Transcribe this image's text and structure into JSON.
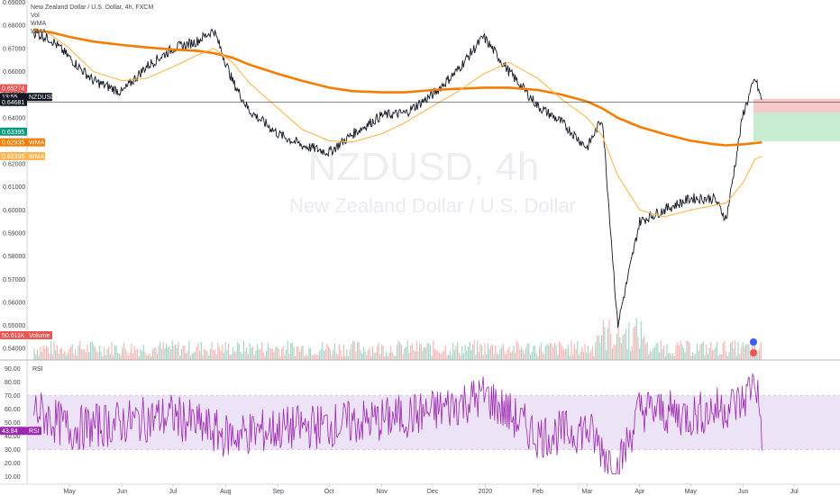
{
  "legend": {
    "title": "New Zealand Dollar / U.S. Dollar, 4h, FXCM",
    "items": [
      "Vol",
      "WMA",
      "WMA"
    ]
  },
  "watermark": {
    "symbol": "NZDUSD, 4h",
    "name": "New Zealand Dollar / U.S. Dollar"
  },
  "price_badges": [
    {
      "label": "0.65274",
      "color": "#ef5350"
    },
    {
      "label": "13:55",
      "color": "#131722"
    },
    {
      "label": "NZDUSD",
      "color": "#131722"
    },
    {
      "label": "0.64681",
      "color": "#131722"
    },
    {
      "label": "0.63395",
      "color": "#089981"
    },
    {
      "label": "0.62935",
      "color": "#f57c00"
    },
    {
      "label": "WMA",
      "color": "#f57c00"
    },
    {
      "label": "0.62335",
      "color": "#ffb74d"
    },
    {
      "label": "WMA",
      "color": "#ffb74d"
    },
    {
      "label": "50.611K",
      "color": "#ef5350"
    },
    {
      "label": "Volume",
      "color": "#ef5350"
    }
  ],
  "rsi_badges": [
    {
      "label": "43.84",
      "color": "#9c27b0"
    },
    {
      "label": "RSI",
      "color": "#9c27b0"
    }
  ],
  "rsi_title": "RSI",
  "colors": {
    "candle": "#131722",
    "wma_long": "#f57c00",
    "wma_short": "#ffb74d",
    "rsi": "#9c27b0",
    "rsi_band": "#ede3f7",
    "stop_zone": "#f8c9c9",
    "target_zone": "#c8ecd0",
    "vol_up": "#a5d6c8",
    "vol_down": "#f5b7b5"
  },
  "chart_data": [
    {
      "type": "line",
      "title": "New Zealand Dollar / U.S. Dollar, 4h, FXCM",
      "x": [
        "2019-04-10",
        "2019-04-20",
        "2019-05-01",
        "2019-05-15",
        "2019-06-01",
        "2019-06-15",
        "2019-07-01",
        "2019-07-15",
        "2019-07-25",
        "2019-08-05",
        "2019-08-15",
        "2019-09-01",
        "2019-09-15",
        "2019-10-01",
        "2019-10-15",
        "2019-11-01",
        "2019-11-15",
        "2019-12-01",
        "2019-12-15",
        "2019-12-31",
        "2020-01-15",
        "2020-02-01",
        "2020-02-15",
        "2020-03-01",
        "2020-03-10",
        "2020-03-19",
        "2020-04-01",
        "2020-04-15",
        "2020-05-01",
        "2020-05-15",
        "2020-05-22",
        "2020-06-01",
        "2020-06-08",
        "2020-06-12"
      ],
      "series": [
        {
          "values": [
            0.677,
            0.674,
            0.666,
            0.656,
            0.651,
            0.662,
            0.67,
            0.673,
            0.678,
            0.656,
            0.643,
            0.633,
            0.628,
            0.625,
            0.633,
            0.641,
            0.642,
            0.65,
            0.66,
            0.675,
            0.66,
            0.645,
            0.638,
            0.627,
            0.64,
            0.55,
            0.595,
            0.6,
            0.605,
            0.605,
            0.596,
            0.642,
            0.657,
            0.647
          ]
        },
        {
          "values": [
            0.678,
            0.677,
            0.675,
            0.673,
            0.6715,
            0.6705,
            0.6695,
            0.669,
            0.668,
            0.666,
            0.663,
            0.659,
            0.656,
            0.653,
            0.6515,
            0.651,
            0.651,
            0.652,
            0.6525,
            0.653,
            0.653,
            0.652,
            0.65,
            0.647,
            0.644,
            0.64,
            0.636,
            0.633,
            0.63,
            0.6285,
            0.628,
            0.6285,
            0.629,
            0.6293
          ]
        },
        {
          "values": [
            0.679,
            0.676,
            0.67,
            0.66,
            0.656,
            0.657,
            0.662,
            0.667,
            0.67,
            0.664,
            0.655,
            0.644,
            0.635,
            0.63,
            0.6295,
            0.633,
            0.638,
            0.645,
            0.651,
            0.659,
            0.664,
            0.657,
            0.648,
            0.64,
            0.632,
            0.615,
            0.6,
            0.597,
            0.6,
            0.602,
            0.603,
            0.612,
            0.622,
            0.6233
          ]
        }
      ],
      "ylim": [
        0.535,
        0.691
      ],
      "yticks": [
        0.54,
        0.55,
        0.56,
        0.57,
        0.58,
        0.59,
        0.6,
        0.61,
        0.62,
        0.63,
        0.64,
        0.65,
        0.66,
        0.67,
        0.68,
        0.69
      ],
      "xticks": [
        "May",
        "Jun",
        "Jul",
        "Aug",
        "Sep",
        "Oct",
        "Nov",
        "Dec",
        "2020",
        "Feb",
        "Mar",
        "Apr",
        "May",
        "Jun",
        "Jul"
      ],
      "grid": false
    },
    {
      "type": "line",
      "title": "RSI",
      "x": [
        "2019-04-10",
        "2019-05-01",
        "2019-06-01",
        "2019-07-01",
        "2019-08-01",
        "2019-09-01",
        "2019-10-01",
        "2019-11-01",
        "2019-12-01",
        "2020-01-01",
        "2020-02-01",
        "2020-03-01",
        "2020-03-19",
        "2020-04-01",
        "2020-05-01",
        "2020-06-01",
        "2020-06-08",
        "2020-06-12"
      ],
      "series": [
        {
          "values": [
            60,
            45,
            50,
            55,
            40,
            45,
            48,
            52,
            58,
            70,
            40,
            45,
            15,
            60,
            55,
            65,
            85,
            43.84
          ]
        }
      ],
      "ylim": [
        5,
        95
      ],
      "yticks": [
        10,
        20,
        30,
        40,
        50,
        60,
        70,
        80,
        90
      ],
      "band": [
        30,
        70
      ]
    }
  ]
}
